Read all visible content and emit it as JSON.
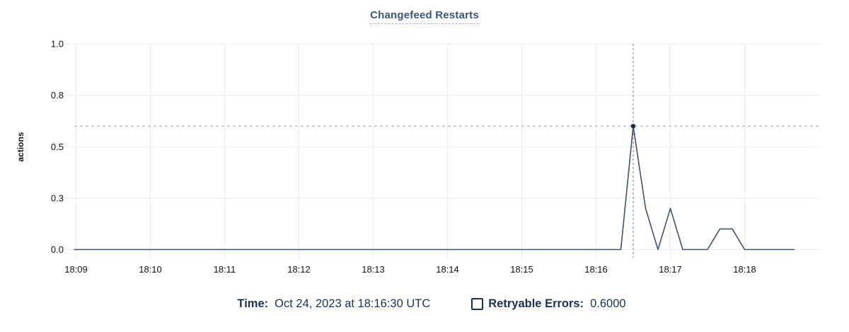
{
  "chart": {
    "title": "Changefeed Restarts",
    "y_axis_label": "actions"
  },
  "tooltip": {
    "time_label": "Time:",
    "time_value": "Oct 24, 2023 at 18:16:30 UTC"
  },
  "legend": {
    "series_label": "Retryable Errors:",
    "series_value": "0.6000",
    "checkbox_checked": false
  },
  "colors": {
    "series_line": "#43526b",
    "hover_dot": "#1d2b44",
    "crosshair_vertical": "#6b7a8d",
    "crosshair_horizontal": "#9aabbc",
    "gridline": "#ececec",
    "title_text": "#3d5677",
    "title_underline": "#9cb0c6",
    "axis_text": "#121212",
    "legend_text": "#1c3152"
  },
  "chart_data": {
    "type": "line",
    "title": "Changefeed Restarts",
    "xlabel": "",
    "ylabel": "actions",
    "ylim": [
      0,
      1.0
    ],
    "x_ticks": [
      "18:09",
      "18:10",
      "18:11",
      "18:12",
      "18:13",
      "18:14",
      "18:15",
      "18:16",
      "18:17",
      "18:18"
    ],
    "y_ticks": [
      {
        "value": 0,
        "label": "0.0"
      },
      {
        "value": 0.25,
        "label": "0.3"
      },
      {
        "value": 0.5,
        "label": "0.5"
      },
      {
        "value": 0.75,
        "label": "0.8"
      },
      {
        "value": 1.0,
        "label": "1.0"
      }
    ],
    "grid": true,
    "legend_position": "bottom",
    "sample_interval_seconds": 10,
    "series": [
      {
        "name": "Retryable Errors",
        "points": [
          {
            "t": "18:09:00",
            "v": 0
          },
          {
            "t": "18:16:20",
            "v": 0
          },
          {
            "t": "18:16:30",
            "v": 0.6
          },
          {
            "t": "18:16:40",
            "v": 0.2
          },
          {
            "t": "18:16:50",
            "v": 0
          },
          {
            "t": "18:17:00",
            "v": 0.2
          },
          {
            "t": "18:17:10",
            "v": 0
          },
          {
            "t": "18:17:30",
            "v": 0
          },
          {
            "t": "18:17:40",
            "v": 0.1
          },
          {
            "t": "18:17:50",
            "v": 0.1
          },
          {
            "t": "18:18:00",
            "v": 0
          },
          {
            "t": "18:18:40",
            "v": 0
          }
        ]
      }
    ],
    "hover_point": {
      "t": "18:16:30",
      "v": 0.6,
      "value_display": "0.6000"
    }
  }
}
